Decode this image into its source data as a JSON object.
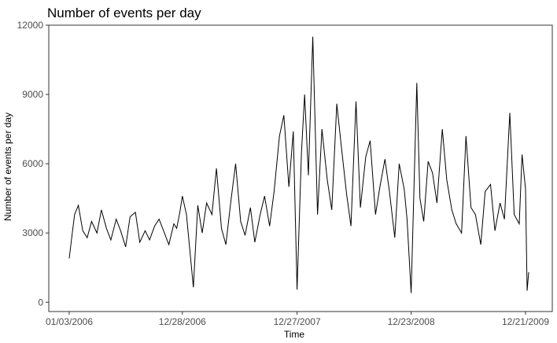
{
  "chart_data": {
    "type": "line",
    "title": "Number of events per day",
    "xlabel": "Time",
    "ylabel": "Number of events per day",
    "xlim": [
      "2006-01-03",
      "2009-12-31"
    ],
    "ylim": [
      -400,
      12000
    ],
    "x_ticks": [
      {
        "date": "2006-01-03",
        "label": "01/03/2006"
      },
      {
        "date": "2006-12-28",
        "label": "12/28/2006"
      },
      {
        "date": "2007-12-27",
        "label": "12/27/2007"
      },
      {
        "date": "2008-12-23",
        "label": "12/23/2008"
      },
      {
        "date": "2009-12-21",
        "label": "12/21/2009"
      }
    ],
    "y_ticks": [
      0,
      3000,
      6000,
      9000,
      12000
    ],
    "grid": false,
    "line_color": "#000000",
    "series": [
      {
        "x": [
          "2006-01-03",
          "2006-01-10",
          "2006-01-20",
          "2006-02-01",
          "2006-02-15",
          "2006-03-01",
          "2006-03-15",
          "2006-04-01",
          "2006-04-15",
          "2006-05-01",
          "2006-05-15",
          "2006-06-01",
          "2006-06-15",
          "2006-07-01",
          "2006-07-15",
          "2006-08-01",
          "2006-08-15",
          "2006-09-01",
          "2006-09-15",
          "2006-10-01",
          "2006-10-15",
          "2006-11-01",
          "2006-11-15",
          "2006-12-01",
          "2006-12-10",
          "2006-12-20",
          "2006-12-28",
          "2007-01-10",
          "2007-02-01",
          "2007-02-15",
          "2007-03-01",
          "2007-03-15",
          "2007-04-01",
          "2007-04-15",
          "2007-05-01",
          "2007-05-15",
          "2007-06-01",
          "2007-06-15",
          "2007-07-01",
          "2007-07-15",
          "2007-08-01",
          "2007-08-15",
          "2007-09-01",
          "2007-09-15",
          "2007-10-01",
          "2007-10-15",
          "2007-11-01",
          "2007-11-15",
          "2007-12-01",
          "2007-12-15",
          "2007-12-27",
          "2008-01-10",
          "2008-01-20",
          "2008-02-01",
          "2008-02-15",
          "2008-03-01",
          "2008-03-15",
          "2008-04-01",
          "2008-04-15",
          "2008-05-01",
          "2008-05-15",
          "2008-06-01",
          "2008-06-15",
          "2008-07-01",
          "2008-07-15",
          "2008-08-01",
          "2008-08-15",
          "2008-09-01",
          "2008-09-15",
          "2008-10-01",
          "2008-10-15",
          "2008-11-01",
          "2008-11-15",
          "2008-12-01",
          "2008-12-10",
          "2008-12-23",
          "2009-01-10",
          "2009-01-20",
          "2009-02-01",
          "2009-02-15",
          "2009-03-01",
          "2009-03-15",
          "2009-04-01",
          "2009-04-15",
          "2009-05-01",
          "2009-05-15",
          "2009-06-01",
          "2009-06-15",
          "2009-07-01",
          "2009-07-15",
          "2009-08-01",
          "2009-08-15",
          "2009-09-01",
          "2009-09-15",
          "2009-10-01",
          "2009-10-15",
          "2009-11-01",
          "2009-11-15",
          "2009-12-01",
          "2009-12-10",
          "2009-12-21",
          "2009-12-26",
          "2009-12-31"
        ],
        "values": [
          1900,
          2700,
          3800,
          4200,
          3100,
          2800,
          3500,
          3000,
          4000,
          3200,
          2700,
          3600,
          3100,
          2400,
          3700,
          3900,
          2600,
          3100,
          2700,
          3300,
          3600,
          3000,
          2500,
          3400,
          3200,
          3900,
          4600,
          3800,
          650,
          4200,
          3000,
          4300,
          3800,
          5800,
          3200,
          2500,
          4500,
          6000,
          3500,
          2900,
          4100,
          2600,
          3800,
          4600,
          3300,
          4800,
          7200,
          8100,
          5000,
          7400,
          550,
          6500,
          9000,
          5500,
          11500,
          3800,
          7500,
          5300,
          4000,
          8600,
          6800,
          4700,
          3300,
          8700,
          4100,
          6300,
          7000,
          3800,
          5000,
          6200,
          4800,
          2800,
          6000,
          4900,
          3600,
          400,
          9500,
          4500,
          3500,
          6100,
          5600,
          4300,
          7500,
          5300,
          4000,
          3400,
          3000,
          7200,
          4100,
          3800,
          2500,
          4800,
          5100,
          3100,
          4300,
          3600,
          8200,
          3800,
          3400,
          6400,
          4900,
          500,
          1300
        ]
      }
    ]
  }
}
